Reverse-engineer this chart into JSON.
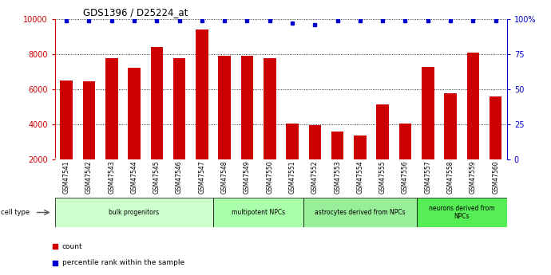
{
  "title": "GDS1396 / D25224_at",
  "samples": [
    "GSM47541",
    "GSM47542",
    "GSM47543",
    "GSM47544",
    "GSM47545",
    "GSM47546",
    "GSM47547",
    "GSM47548",
    "GSM47549",
    "GSM47550",
    "GSM47551",
    "GSM47552",
    "GSM47553",
    "GSM47554",
    "GSM47555",
    "GSM47556",
    "GSM47557",
    "GSM47558",
    "GSM47559",
    "GSM47560"
  ],
  "counts": [
    6500,
    6450,
    7800,
    7250,
    8400,
    7800,
    9400,
    7900,
    7900,
    7800,
    4050,
    3950,
    3600,
    3350,
    5150,
    4050,
    7300,
    5800,
    8100,
    5600
  ],
  "percentile_ranks": [
    99,
    99,
    99,
    99,
    99,
    99,
    99,
    99,
    99,
    99,
    97,
    96,
    99,
    99,
    99,
    99,
    99,
    99,
    99,
    99
  ],
  "ylim_left": [
    2000,
    10000
  ],
  "ylim_right": [
    0,
    100
  ],
  "bar_color": "#cc0000",
  "dot_color": "#0000cc",
  "bg_color": "#ffffff",
  "cell_type_groups": [
    {
      "label": "bulk progenitors",
      "start": 0,
      "end": 7,
      "color": "#ccffcc"
    },
    {
      "label": "multipotent NPCs",
      "start": 7,
      "end": 11,
      "color": "#aaffaa"
    },
    {
      "label": "astrocytes derived from NPCs",
      "start": 11,
      "end": 16,
      "color": "#99ee99"
    },
    {
      "label": "neurons derived from\nNPCs",
      "start": 16,
      "end": 20,
      "color": "#55ee55"
    }
  ],
  "left_yticks": [
    2000,
    4000,
    6000,
    8000,
    10000
  ],
  "right_yticks": [
    0,
    25,
    50,
    75,
    100
  ],
  "right_ytick_labels": [
    "0",
    "25",
    "50",
    "75",
    "100%"
  ],
  "legend_count_label": "count",
  "legend_percentile_label": "percentile rank within the sample"
}
